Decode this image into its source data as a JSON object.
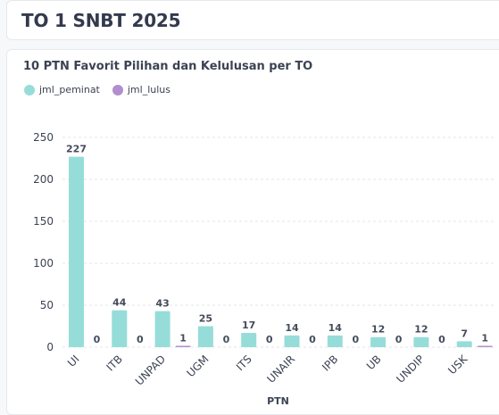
{
  "header": {
    "title": "TO 1 SNBT 2025"
  },
  "chart_data": {
    "type": "bar",
    "title": "10 PTN Favorit Pilihan dan Kelulusan per TO",
    "xlabel": "PTN",
    "ylabel": "",
    "ylim": [
      0,
      250
    ],
    "yticks": [
      0,
      50,
      100,
      150,
      200,
      250
    ],
    "grid": true,
    "legend_position": "top-left",
    "categories": [
      "UI",
      "ITB",
      "UNPAD",
      "UGM",
      "ITS",
      "UNAIR",
      "IPB",
      "UB",
      "UNDIP",
      "USK"
    ],
    "series": [
      {
        "name": "jml_peminat",
        "color": "#96ddd9",
        "values": [
          227,
          44,
          43,
          25,
          17,
          14,
          14,
          12,
          12,
          7
        ]
      },
      {
        "name": "jml_lulus",
        "color": "#b08ecf",
        "values": [
          0,
          0,
          1,
          0,
          0,
          0,
          0,
          0,
          0,
          1
        ]
      }
    ]
  }
}
